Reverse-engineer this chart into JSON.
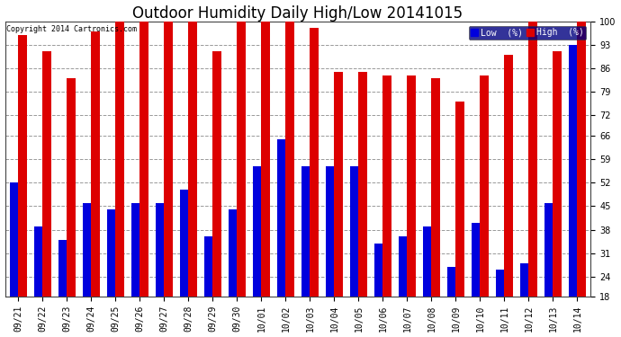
{
  "title": "Outdoor Humidity Daily High/Low 20141015",
  "copyright": "Copyright 2014 Cartronics.com",
  "legend_labels": [
    "Low  (%)",
    "High  (%)"
  ],
  "legend_colors": [
    "#0000dd",
    "#dd0000"
  ],
  "categories": [
    "09/21",
    "09/22",
    "09/23",
    "09/24",
    "09/25",
    "09/26",
    "09/27",
    "09/28",
    "09/29",
    "09/30",
    "10/01",
    "10/02",
    "10/03",
    "10/04",
    "10/05",
    "10/06",
    "10/07",
    "10/08",
    "10/09",
    "10/10",
    "10/11",
    "10/12",
    "10/13",
    "10/14"
  ],
  "high_values": [
    96,
    91,
    83,
    97,
    100,
    100,
    100,
    100,
    91,
    100,
    100,
    100,
    98,
    85,
    85,
    84,
    84,
    83,
    76,
    84,
    90,
    100,
    91,
    100
  ],
  "low_values": [
    52,
    39,
    35,
    46,
    44,
    46,
    46,
    50,
    36,
    44,
    57,
    65,
    57,
    57,
    57,
    34,
    36,
    39,
    27,
    40,
    26,
    28,
    46,
    93
  ],
  "ylim_min": 18,
  "ylim_max": 100,
  "yticks": [
    18,
    24,
    31,
    38,
    45,
    52,
    59,
    66,
    72,
    79,
    86,
    93,
    100
  ],
  "bar_width": 0.35,
  "bg_color": "#ffffff",
  "plot_bg_color": "#ffffff",
  "grid_color": "#999999",
  "title_fontsize": 12,
  "tick_fontsize": 7,
  "label_fontsize": 7,
  "legend_bg": "#000080"
}
